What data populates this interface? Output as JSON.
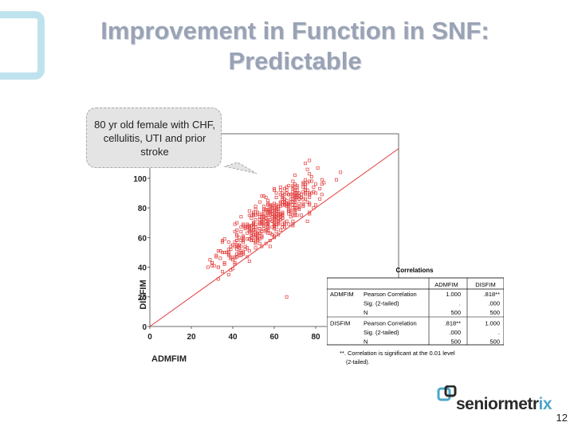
{
  "slide": {
    "title_line1": "Improvement in Function in SNF:",
    "title_line2": "Predictable",
    "callout": "80 yr old female with CHF, cellulitis, UTI and prior stroke",
    "page_number": "12",
    "logo_text_main": "seniormetr",
    "logo_text_accent": "ix"
  },
  "chart_data": {
    "type": "scatter",
    "xlabel": "ADMFIM",
    "ylabel": "DISFIM",
    "xlim": [
      0,
      120
    ],
    "ylim": [
      0,
      130
    ],
    "xticks": [
      0,
      20,
      40,
      60,
      80
    ],
    "yticks": [
      0,
      20,
      40,
      60,
      80,
      100
    ],
    "reference_line": "identity",
    "marker_color": "#e23a3a",
    "points": []
  },
  "correlations": {
    "title": "Correlations",
    "col_headers": [
      "ADMFIM",
      "DISFIM"
    ],
    "rows": [
      {
        "var": "ADMFIM",
        "stat": "Pearson Correlation",
        "c1": "1.000",
        "c2": ".818**"
      },
      {
        "var": "",
        "stat": "Sig. (2-tailed)",
        "c1": ".",
        "c2": ".000"
      },
      {
        "var": "",
        "stat": "N",
        "c1": "500",
        "c2": "500"
      },
      {
        "var": "DISFIM",
        "stat": "Pearson Correlation",
        "c1": ".818**",
        "c2": "1.000"
      },
      {
        "var": "",
        "stat": "Sig. (2-tailed)",
        "c1": ".000",
        "c2": "."
      },
      {
        "var": "",
        "stat": "N",
        "c1": "500",
        "c2": "500"
      }
    ],
    "footnote_line1": "**. Correlation is significant at the 0.01 level",
    "footnote_line2": "(2-tailed)."
  }
}
